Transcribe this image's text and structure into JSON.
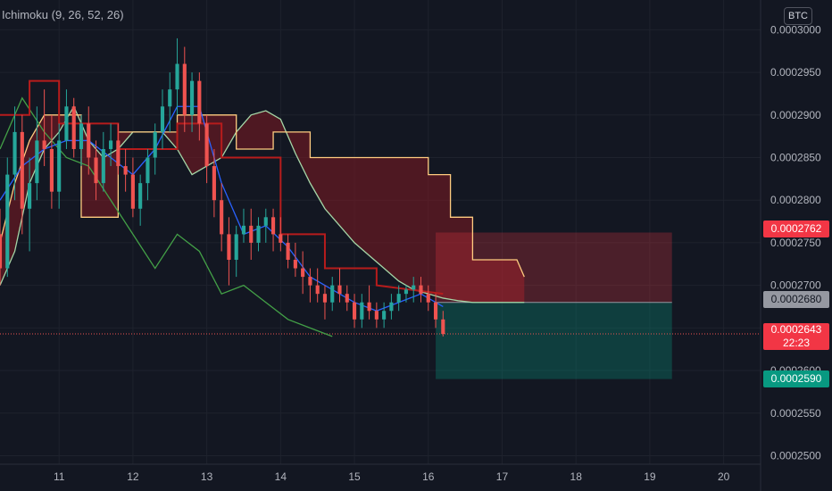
{
  "indicator": {
    "label": "Ichimoku (9, 26, 52, 26)"
  },
  "currency": {
    "label": "BTC"
  },
  "colors": {
    "background": "#131722",
    "grid": "#1e222d",
    "axis_text": "#b2b5be",
    "candle_up": "#26a69a",
    "candle_down": "#ef5350",
    "conversion_line": "#2962ff",
    "base_line": "#b71c1c",
    "lagging_span": "#43a047",
    "leading_span_a": "#a5d6a7",
    "leading_span_b": "#ffcc80",
    "cloud_bull": "#1b5e20",
    "cloud_bear": "#801922",
    "stop_zone": "#f23645",
    "target_zone": "#089981"
  },
  "chart_data": {
    "type": "candlestick",
    "x_ticks": [
      "11",
      "12",
      "13",
      "14",
      "15",
      "16",
      "17",
      "18",
      "19",
      "20"
    ],
    "y_ticks": [
      "0.0002500",
      "0.0002550",
      "0.0002600",
      "0.0002650",
      "0.0002700",
      "0.0002750",
      "0.0002800",
      "0.0002850",
      "0.0002900",
      "0.0002950",
      "0.0003000"
    ],
    "xlim": [
      10.2,
      20.5
    ],
    "ylim": [
      0.000249,
      0.0003035
    ],
    "last_price": {
      "value": "0.0002643",
      "countdown": "22:23"
    },
    "position": {
      "type": "short",
      "entry": "0.0002680",
      "stop": "0.0002762",
      "target": "0.0002590",
      "start_x": 16.1,
      "end_x": 19.3
    },
    "candles": [
      [
        10.2,
        0.000276,
        0.000279,
        0.00027,
        0.000272
      ],
      [
        10.3,
        0.000272,
        0.000285,
        0.000271,
        0.000283
      ],
      [
        10.4,
        0.000283,
        0.000291,
        0.00028,
        0.000288
      ],
      [
        10.5,
        0.000288,
        0.00029,
        0.000276,
        0.000279
      ],
      [
        10.6,
        0.000279,
        0.000285,
        0.000274,
        0.000282
      ],
      [
        10.7,
        0.000282,
        0.000291,
        0.00028,
        0.000287
      ],
      [
        10.8,
        0.000287,
        0.000293,
        0.000284,
        0.000286
      ],
      [
        10.9,
        0.000286,
        0.00029,
        0.000279,
        0.000281
      ],
      [
        11.0,
        0.000281,
        0.000289,
        0.000279,
        0.000287
      ],
      [
        11.1,
        0.000287,
        0.000293,
        0.000286,
        0.000291
      ],
      [
        11.2,
        0.000291,
        0.000292,
        0.000285,
        0.000286
      ],
      [
        11.3,
        0.000286,
        0.00029,
        0.000284,
        0.000289
      ],
      [
        11.4,
        0.000289,
        0.000291,
        0.000283,
        0.000285
      ],
      [
        11.5,
        0.000285,
        0.000287,
        0.00028,
        0.000282
      ],
      [
        11.6,
        0.000282,
        0.000288,
        0.000281,
        0.000286
      ],
      [
        11.7,
        0.000286,
        0.000289,
        0.000284,
        0.000287
      ],
      [
        11.8,
        0.000287,
        0.000289,
        0.000283,
        0.000284
      ],
      [
        11.9,
        0.000284,
        0.000286,
        0.000281,
        0.000283
      ],
      [
        12.0,
        0.000283,
        0.000285,
        0.000278,
        0.000279
      ],
      [
        12.1,
        0.000279,
        0.000283,
        0.000277,
        0.000282
      ],
      [
        12.2,
        0.000282,
        0.000286,
        0.00028,
        0.000285
      ],
      [
        12.3,
        0.000285,
        0.000289,
        0.000283,
        0.000288
      ],
      [
        12.4,
        0.000288,
        0.000293,
        0.000286,
        0.000291
      ],
      [
        12.5,
        0.000291,
        0.000295,
        0.000288,
        0.000293
      ],
      [
        12.6,
        0.000293,
        0.000299,
        0.00029,
        0.000296
      ],
      [
        12.7,
        0.000296,
        0.000298,
        0.000288,
        0.00029
      ],
      [
        12.8,
        0.00029,
        0.000295,
        0.000288,
        0.000294
      ],
      [
        12.9,
        0.000294,
        0.000295,
        0.000287,
        0.000289
      ],
      [
        13.0,
        0.000289,
        0.00029,
        0.000282,
        0.000284
      ],
      [
        13.1,
        0.000284,
        0.000286,
        0.000278,
        0.00028
      ],
      [
        13.2,
        0.00028,
        0.000282,
        0.000274,
        0.000276
      ],
      [
        13.3,
        0.000276,
        0.000278,
        0.00027,
        0.000273
      ],
      [
        13.4,
        0.000273,
        0.000277,
        0.000271,
        0.000276
      ],
      [
        13.5,
        0.000276,
        0.000279,
        0.000275,
        0.000277
      ],
      [
        13.6,
        0.000277,
        0.000279,
        0.000273,
        0.000275
      ],
      [
        13.7,
        0.000275,
        0.000278,
        0.000274,
        0.000277
      ],
      [
        13.8,
        0.000277,
        0.000279,
        0.000275,
        0.000278
      ],
      [
        13.9,
        0.000278,
        0.000279,
        0.000274,
        0.000276
      ],
      [
        14.0,
        0.000276,
        0.000278,
        0.000274,
        0.000275
      ],
      [
        14.1,
        0.000275,
        0.000276,
        0.000272,
        0.000273
      ],
      [
        14.2,
        0.000273,
        0.000275,
        0.000271,
        0.000272
      ],
      [
        14.3,
        0.000272,
        0.000274,
        0.000269,
        0.000271
      ],
      [
        14.4,
        0.000271,
        0.000272,
        0.000268,
        0.00027
      ],
      [
        14.5,
        0.00027,
        0.000272,
        0.000268,
        0.000269
      ],
      [
        14.6,
        0.000269,
        0.00027,
        0.000266,
        0.000268
      ],
      [
        14.7,
        0.000268,
        0.000271,
        0.000267,
        0.00027
      ],
      [
        14.8,
        0.00027,
        0.000272,
        0.000268,
        0.000269
      ],
      [
        14.9,
        0.000269,
        0.00027,
        0.000267,
        0.000268
      ],
      [
        15.0,
        0.000268,
        0.000269,
        0.000265,
        0.000266
      ],
      [
        15.1,
        0.000266,
        0.000269,
        0.000265,
        0.000268
      ],
      [
        15.2,
        0.000268,
        0.00027,
        0.000266,
        0.000267
      ],
      [
        15.3,
        0.000267,
        0.000268,
        0.000265,
        0.000266
      ],
      [
        15.4,
        0.000266,
        0.000268,
        0.000265,
        0.000267
      ],
      [
        15.5,
        0.000267,
        0.000269,
        0.000266,
        0.000268
      ],
      [
        15.6,
        0.000268,
        0.00027,
        0.000267,
        0.000269
      ],
      [
        15.7,
        0.000269,
        0.00027,
        0.000268,
        0.0002695
      ],
      [
        15.8,
        0.0002695,
        0.000271,
        0.000268,
        0.00027
      ],
      [
        15.9,
        0.00027,
        0.000271,
        0.000268,
        0.000269
      ],
      [
        16.0,
        0.000269,
        0.00027,
        0.000267,
        0.000268
      ],
      [
        16.1,
        0.000268,
        0.000269,
        0.000265,
        0.000266
      ],
      [
        16.2,
        0.000266,
        0.000267,
        0.000264,
        0.0002643
      ]
    ],
    "conversion_line": [
      [
        10.2,
        0.00028
      ],
      [
        10.5,
        0.000284
      ],
      [
        10.8,
        0.000286
      ],
      [
        11.1,
        0.000287
      ],
      [
        11.4,
        0.000287
      ],
      [
        11.7,
        0.000285
      ],
      [
        12.0,
        0.000283
      ],
      [
        12.3,
        0.000286
      ],
      [
        12.6,
        0.000291
      ],
      [
        12.9,
        0.000291
      ],
      [
        13.2,
        0.000282
      ],
      [
        13.5,
        0.000276
      ],
      [
        13.8,
        0.000277
      ],
      [
        14.1,
        0.0002745
      ],
      [
        14.4,
        0.000271
      ],
      [
        14.7,
        0.0002695
      ],
      [
        15.0,
        0.000268
      ],
      [
        15.3,
        0.000267
      ],
      [
        15.6,
        0.000268
      ],
      [
        15.9,
        0.000269
      ],
      [
        16.2,
        0.0002675
      ]
    ],
    "base_line": [
      [
        10.2,
        0.00029
      ],
      [
        10.6,
        0.00029
      ],
      [
        10.6,
        0.000294
      ],
      [
        11.0,
        0.000294
      ],
      [
        11.0,
        0.000289
      ],
      [
        11.8,
        0.000289
      ],
      [
        11.8,
        0.000286
      ],
      [
        12.6,
        0.000286
      ],
      [
        12.6,
        0.000289
      ],
      [
        13.2,
        0.000289
      ],
      [
        13.2,
        0.000285
      ],
      [
        14.0,
        0.000285
      ],
      [
        14.0,
        0.000276
      ],
      [
        14.6,
        0.000276
      ],
      [
        14.6,
        0.000272
      ],
      [
        15.3,
        0.000272
      ],
      [
        15.3,
        0.00027
      ],
      [
        16.2,
        0.000269
      ]
    ],
    "lagging_span": [
      [
        10.2,
        0.000286
      ],
      [
        10.5,
        0.000292
      ],
      [
        10.8,
        0.000288
      ],
      [
        11.1,
        0.000285
      ],
      [
        11.4,
        0.000284
      ],
      [
        11.7,
        0.00028
      ],
      [
        12.0,
        0.000276
      ],
      [
        12.3,
        0.000272
      ],
      [
        12.6,
        0.000276
      ],
      [
        12.9,
        0.000274
      ],
      [
        13.2,
        0.000269
      ],
      [
        13.5,
        0.00027
      ],
      [
        13.8,
        0.000268
      ],
      [
        14.1,
        0.000266
      ],
      [
        14.4,
        0.000265
      ],
      [
        14.7,
        0.000264
      ]
    ],
    "leading_span_a": [
      [
        10.2,
        0.00027
      ],
      [
        10.4,
        0.000274
      ],
      [
        10.6,
        0.000282
      ],
      [
        10.8,
        0.000286
      ],
      [
        11.0,
        0.000288
      ],
      [
        11.2,
        0.000291
      ],
      [
        11.4,
        0.000287
      ],
      [
        11.6,
        0.000285
      ],
      [
        11.8,
        0.000286
      ],
      [
        12.0,
        0.000288
      ],
      [
        12.2,
        0.000288
      ],
      [
        12.4,
        0.000288
      ],
      [
        12.6,
        0.000286
      ],
      [
        12.8,
        0.000283
      ],
      [
        13.0,
        0.000284
      ],
      [
        13.2,
        0.000285
      ],
      [
        13.4,
        0.000288
      ],
      [
        13.6,
        0.00029
      ],
      [
        13.8,
        0.0002905
      ],
      [
        14.0,
        0.0002895
      ],
      [
        14.2,
        0.0002855
      ],
      [
        14.4,
        0.000282
      ],
      [
        14.6,
        0.000279
      ],
      [
        14.8,
        0.000277
      ],
      [
        15.0,
        0.000275
      ],
      [
        15.2,
        0.0002735
      ],
      [
        15.4,
        0.000272
      ],
      [
        15.6,
        0.0002705
      ],
      [
        15.8,
        0.0002695
      ],
      [
        16.0,
        0.000269
      ],
      [
        16.2,
        0.0002685
      ],
      [
        16.4,
        0.0002682
      ],
      [
        16.6,
        0.000268
      ],
      [
        16.8,
        0.000268
      ],
      [
        17.0,
        0.000268
      ],
      [
        17.2,
        0.000268
      ],
      [
        17.3,
        0.000268
      ]
    ],
    "leading_span_b": [
      [
        10.2,
        0.000275
      ],
      [
        10.4,
        0.000282
      ],
      [
        10.6,
        0.000287
      ],
      [
        10.8,
        0.00029
      ],
      [
        11.0,
        0.00029
      ],
      [
        11.3,
        0.00029
      ],
      [
        11.3,
        0.000278
      ],
      [
        11.8,
        0.000278
      ],
      [
        11.8,
        0.000288
      ],
      [
        12.6,
        0.000288
      ],
      [
        12.6,
        0.00029
      ],
      [
        13.4,
        0.00029
      ],
      [
        13.4,
        0.000286
      ],
      [
        13.9,
        0.000286
      ],
      [
        13.9,
        0.000288
      ],
      [
        14.4,
        0.000288
      ],
      [
        14.4,
        0.000285
      ],
      [
        16.0,
        0.000285
      ],
      [
        16.0,
        0.000283
      ],
      [
        16.3,
        0.000283
      ],
      [
        16.3,
        0.000278
      ],
      [
        16.6,
        0.000278
      ],
      [
        16.6,
        0.000273
      ],
      [
        17.2,
        0.000273
      ],
      [
        17.3,
        0.000271
      ]
    ]
  }
}
